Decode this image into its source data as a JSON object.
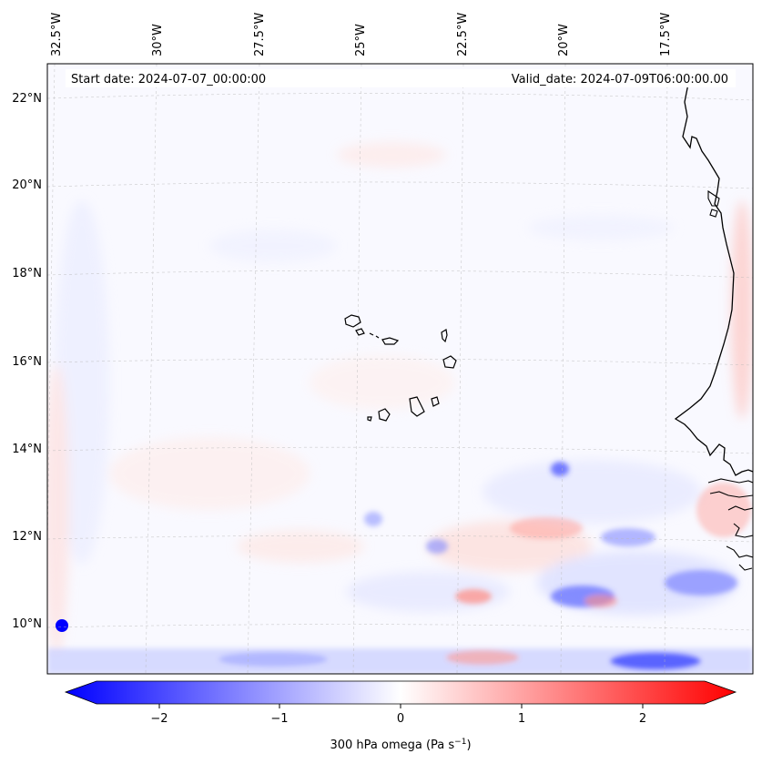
{
  "map": {
    "start_date_label": "Start date: 2024-07-07_00:00:00",
    "valid_date_label": "Valid_date: 2024-07-09T06:00:00.00",
    "longitude_labels": [
      "32.5°W",
      "30°W",
      "27.5°W",
      "25°W",
      "22.5°W",
      "20°W",
      "17.5°W"
    ],
    "latitude_labels": [
      "22°N",
      "20°N",
      "18°N",
      "16°N",
      "14°N",
      "12°N",
      "10°N"
    ],
    "field": "300 hPa omega",
    "colormap": "bwr"
  },
  "colorbar": {
    "label_prefix": "300 hPa omega (Pa s",
    "label_exponent": "−1",
    "label_suffix": ")",
    "ticks": [
      "−2",
      "−1",
      "0",
      "1",
      "2"
    ],
    "range": [
      -2.7,
      2.7
    ],
    "extend": "both",
    "min_color": "#0000ff",
    "mid_color": "#ffffff",
    "max_color": "#ff0000"
  }
}
